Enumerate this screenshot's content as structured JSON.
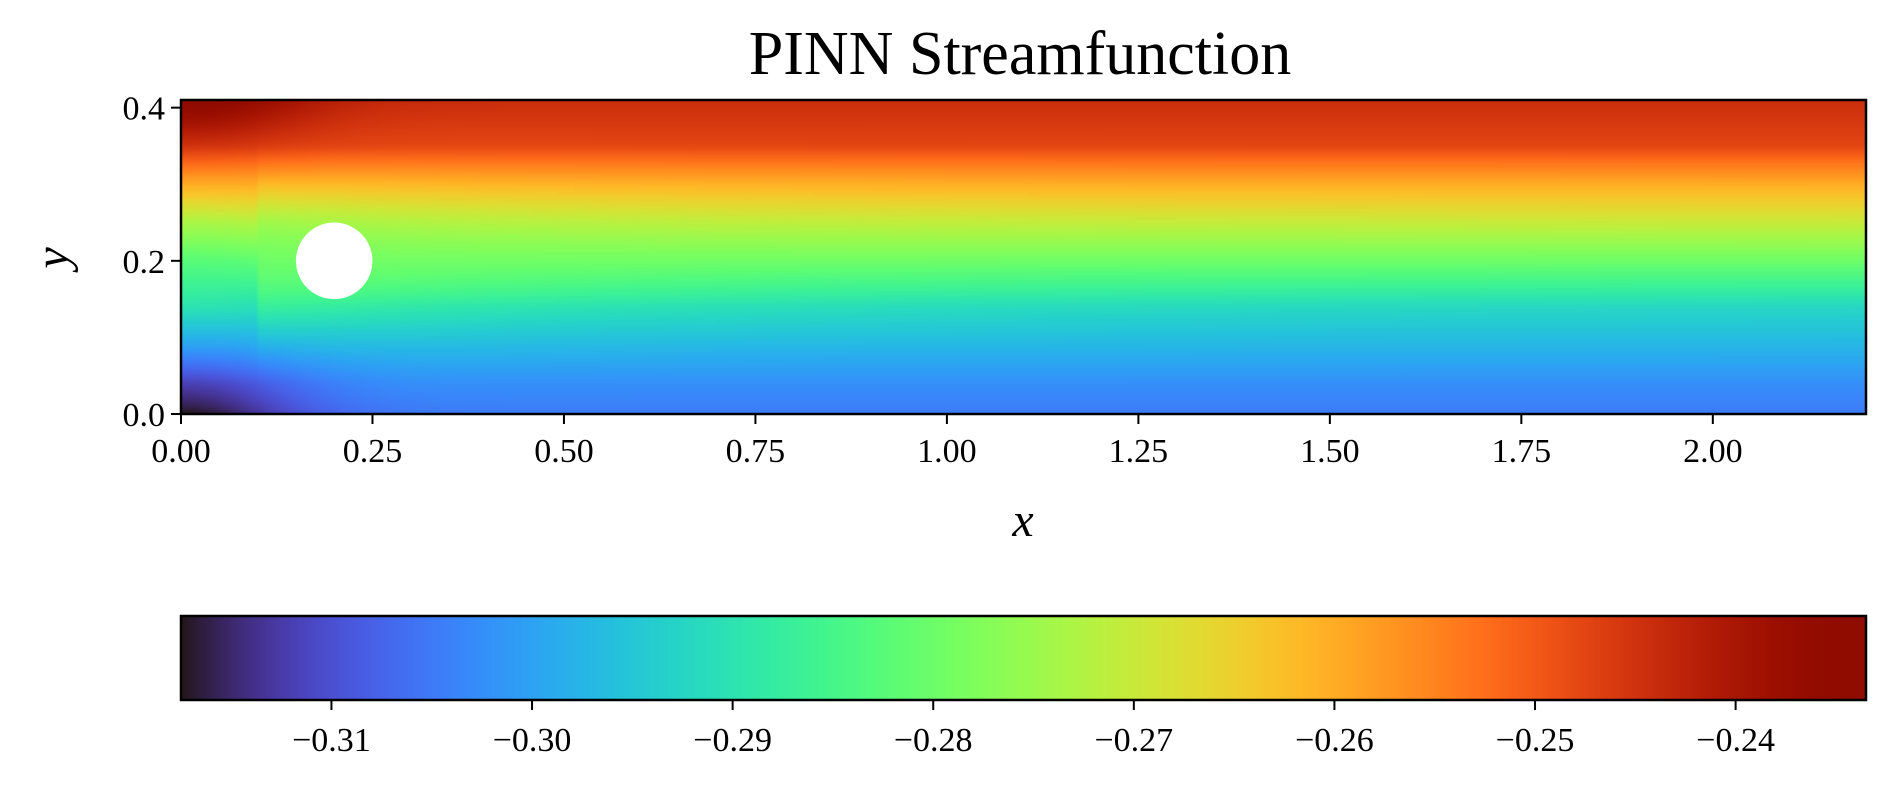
{
  "chart_data": {
    "type": "heatmap",
    "title": "PINN Streamfunction",
    "xlabel": "x",
    "ylabel": "y",
    "xlim": [
      0.0,
      2.2
    ],
    "ylim": [
      0.0,
      0.41
    ],
    "x_ticks": [
      0.0,
      0.25,
      0.5,
      0.75,
      1.0,
      1.25,
      1.5,
      1.75,
      2.0
    ],
    "x_tick_labels": [
      "0.00",
      "0.25",
      "0.50",
      "0.75",
      "1.00",
      "1.25",
      "1.50",
      "1.75",
      "2.00"
    ],
    "y_ticks": [
      0.0,
      0.2,
      0.4
    ],
    "y_tick_labels": [
      "0.0",
      "0.2",
      "0.4"
    ],
    "colormap": "turbo",
    "colorbar": {
      "orientation": "horizontal",
      "range": [
        -0.3175,
        -0.2335
      ],
      "ticks": [
        -0.31,
        -0.3,
        -0.29,
        -0.28,
        -0.27,
        -0.26,
        -0.25,
        -0.24
      ],
      "tick_labels": [
        "−0.31",
        "−0.30",
        "−0.29",
        "−0.28",
        "−0.27",
        "−0.26",
        "−0.25",
        "−0.24"
      ]
    },
    "obstacle": {
      "shape": "circle",
      "center": [
        0.2,
        0.2
      ],
      "radius": 0.05,
      "color": "#ffffff"
    },
    "field_profile": {
      "y": [
        0.0,
        0.04,
        0.09,
        0.14,
        0.2,
        0.25,
        0.3,
        0.35,
        0.41
      ],
      "value_far_downstream": [
        -0.305,
        -0.3025,
        -0.2975,
        -0.2925,
        -0.28,
        -0.27,
        -0.26,
        -0.2475,
        -0.244
      ],
      "value_inlet": [
        -0.3175,
        -0.312,
        -0.3,
        -0.29,
        -0.2825,
        -0.2735,
        -0.26,
        -0.245,
        -0.2335
      ]
    }
  }
}
